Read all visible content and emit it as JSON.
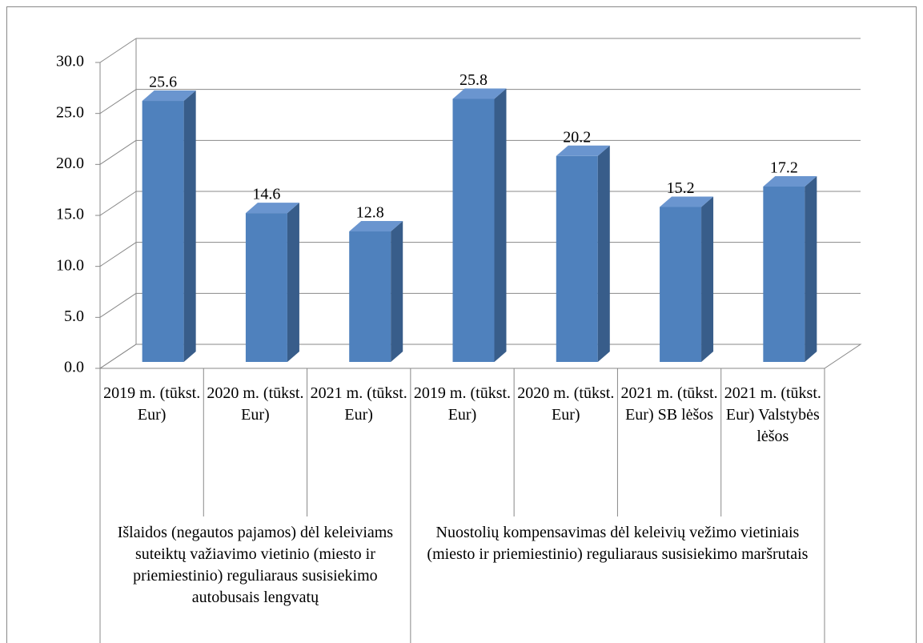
{
  "chart_data": {
    "type": "bar3d",
    "categories": [
      "2019 m. (tūkst. Eur)",
      "2020 m. (tūkst. Eur)",
      "2021 m. (tūkst. Eur)",
      "2019 m. (tūkst. Eur)",
      "2020 m. (tūkst. Eur)",
      "2021 m. (tūkst. Eur) SB lėšos",
      "2021 m. (tūkst. Eur) Valstybės lėšos"
    ],
    "groups": [
      {
        "label": "Išlaidos (negautos pajamos) dėl keleiviams suteiktų važiavimo vietinio (miesto ir priemiestinio) reguliaraus susisiekimo autobusais lengvatų",
        "size": 3
      },
      {
        "label": "Nuostolių kompensavimas dėl keleivių vežimo vietiniais (miesto ir priemiestinio) reguliaraus susisiekimo maršrutais",
        "size": 4
      }
    ],
    "values": [
      25.6,
      14.6,
      12.8,
      25.8,
      20.2,
      15.2,
      17.2
    ],
    "color": "#4f81bd",
    "ylim": [
      0,
      30
    ],
    "yticks": [
      {
        "value": 0,
        "label": "0.0"
      },
      {
        "value": 5,
        "label": "5.0"
      },
      {
        "value": 10,
        "label": "10.0"
      },
      {
        "value": 15,
        "label": "15.0"
      },
      {
        "value": 20,
        "label": "20.0"
      },
      {
        "value": 25,
        "label": "25.0"
      },
      {
        "value": 30,
        "label": "30.0"
      }
    ],
    "grid": true
  }
}
